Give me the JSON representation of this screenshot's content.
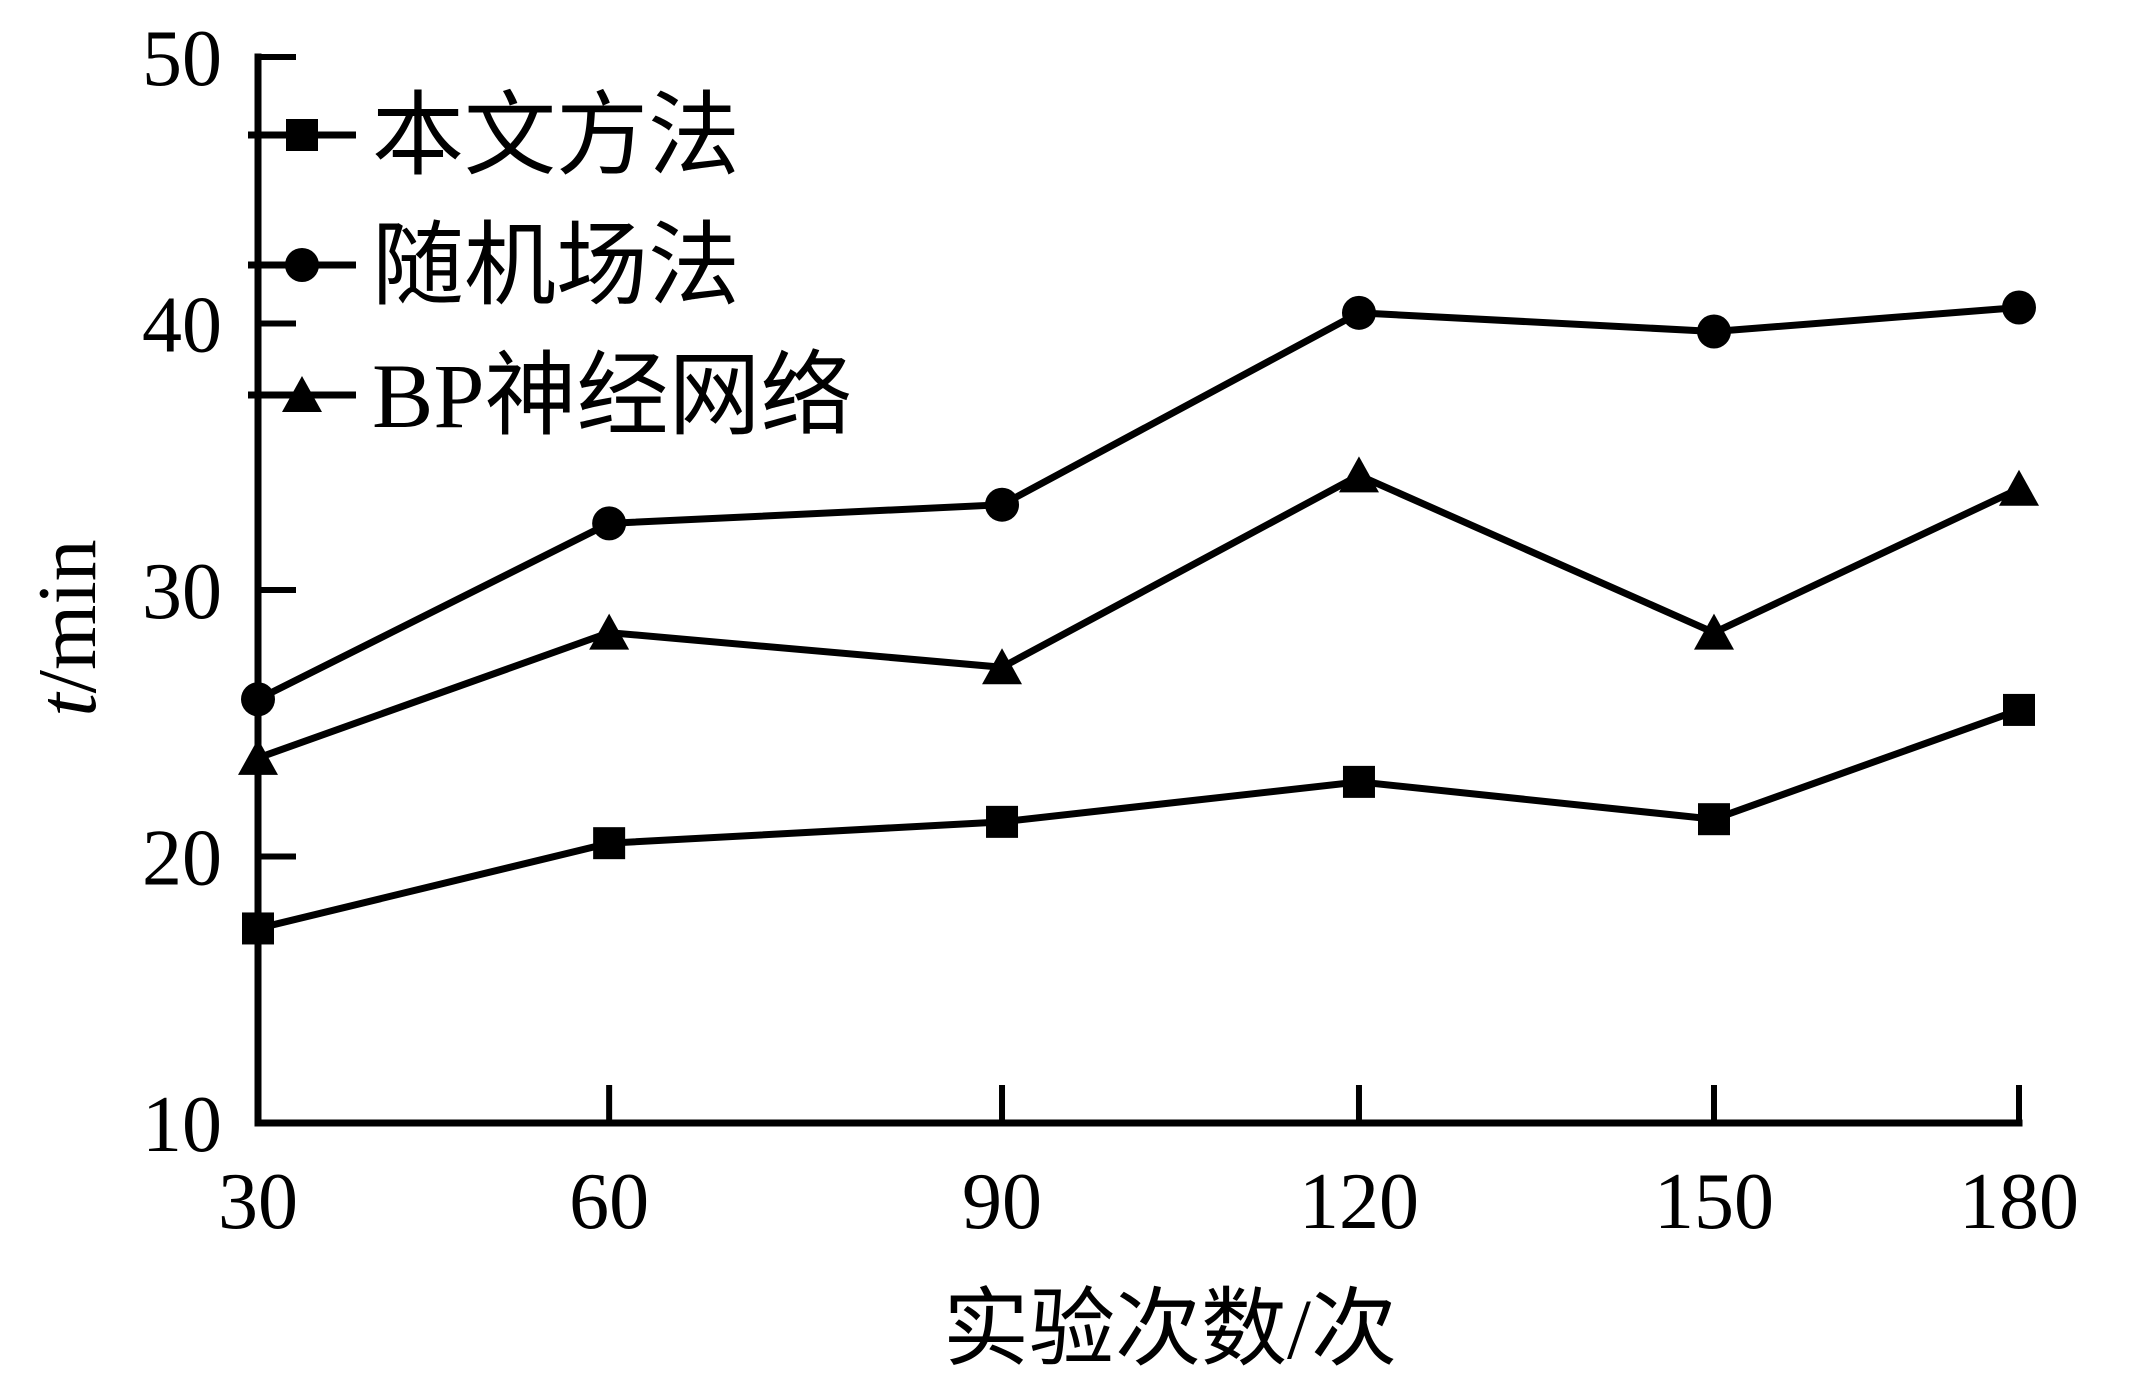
{
  "colors": {
    "ink": "#000000",
    "background": "#ffffff"
  },
  "chart_data": {
    "type": "line",
    "xlabel": "实验次数/次",
    "ylabel": "t/min",
    "ylabel_parts": {
      "variable": "t",
      "unit": "/min"
    },
    "x": [
      30,
      60,
      90,
      120,
      150,
      180
    ],
    "xticks": [
      30,
      60,
      90,
      120,
      150,
      180
    ],
    "yticks": [
      10,
      20,
      30,
      40,
      50
    ],
    "xlim": [
      30,
      180
    ],
    "ylim": [
      10,
      50
    ],
    "grid": false,
    "legend_position": "upper-left",
    "series": [
      {
        "name": "本文方法",
        "marker": "square",
        "color": "#000000",
        "values": [
          17.3,
          20.5,
          21.3,
          22.8,
          21.4,
          25.5
        ]
      },
      {
        "name": "随机场法",
        "marker": "circle",
        "color": "#000000",
        "values": [
          25.9,
          32.5,
          33.2,
          40.4,
          39.7,
          40.6
        ]
      },
      {
        "name": "BP神经网络",
        "marker": "triangle",
        "color": "#000000",
        "values": [
          23.7,
          28.4,
          27.1,
          34.3,
          28.4,
          33.8
        ]
      }
    ]
  }
}
